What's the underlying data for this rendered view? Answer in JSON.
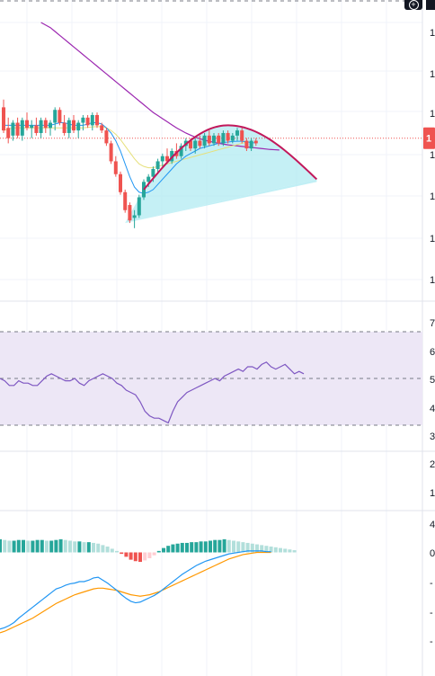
{
  "toolbar": {
    "zoom_icon": "plus-circle-icon"
  },
  "colors": {
    "up": "#26a69a",
    "down": "#ef5350",
    "rsi": "#7e57c2",
    "rsi_band": "#ede7f6",
    "macd": "#2196f3",
    "signal": "#ff9800",
    "ma_long": "#9c27b0",
    "ma_short": "#2196f3",
    "ma_mid": "#e6e07a",
    "arc": "#c2185b",
    "wedge": "#b2ebf2",
    "price_line": "#ef5350"
  },
  "chart_data": {
    "type": "candlestick",
    "price_pane": {
      "axis_labels": [
        "1",
        "1",
        "1",
        "1",
        "1",
        "1",
        "1"
      ],
      "price_tag": {
        "value": "1"
      },
      "candles": [
        {
          "o": 67,
          "h": 70,
          "l": 57,
          "c": 58
        },
        {
          "o": 59,
          "h": 63,
          "l": 53,
          "c": 55
        },
        {
          "o": 56,
          "h": 62,
          "l": 54,
          "c": 61
        },
        {
          "o": 61,
          "h": 63,
          "l": 55,
          "c": 56
        },
        {
          "o": 56,
          "h": 63,
          "l": 54,
          "c": 62
        },
        {
          "o": 62,
          "h": 65,
          "l": 58,
          "c": 59
        },
        {
          "o": 59,
          "h": 62,
          "l": 55,
          "c": 60
        },
        {
          "o": 60,
          "h": 63,
          "l": 56,
          "c": 57
        },
        {
          "o": 57,
          "h": 63,
          "l": 55,
          "c": 62
        },
        {
          "o": 62,
          "h": 63,
          "l": 57,
          "c": 59
        },
        {
          "o": 59,
          "h": 62,
          "l": 56,
          "c": 61
        },
        {
          "o": 61,
          "h": 67,
          "l": 58,
          "c": 66
        },
        {
          "o": 66,
          "h": 67,
          "l": 60,
          "c": 61
        },
        {
          "o": 61,
          "h": 64,
          "l": 56,
          "c": 57
        },
        {
          "o": 57,
          "h": 63,
          "l": 55,
          "c": 62
        },
        {
          "o": 62,
          "h": 64,
          "l": 57,
          "c": 58
        },
        {
          "o": 58,
          "h": 62,
          "l": 55,
          "c": 61
        },
        {
          "o": 61,
          "h": 64,
          "l": 58,
          "c": 63
        },
        {
          "o": 63,
          "h": 64,
          "l": 59,
          "c": 60
        },
        {
          "o": 60,
          "h": 65,
          "l": 58,
          "c": 64
        },
        {
          "o": 64,
          "h": 65,
          "l": 59,
          "c": 60
        },
        {
          "o": 60,
          "h": 61,
          "l": 57,
          "c": 58
        },
        {
          "o": 58,
          "h": 59,
          "l": 52,
          "c": 53
        },
        {
          "o": 53,
          "h": 54,
          "l": 45,
          "c": 46
        },
        {
          "o": 46,
          "h": 48,
          "l": 40,
          "c": 41
        },
        {
          "o": 41,
          "h": 42,
          "l": 33,
          "c": 34
        },
        {
          "o": 34,
          "h": 35,
          "l": 26,
          "c": 27
        },
        {
          "o": 29,
          "h": 30,
          "l": 22,
          "c": 23
        },
        {
          "o": 24,
          "h": 27,
          "l": 20,
          "c": 25
        },
        {
          "o": 25,
          "h": 33,
          "l": 24,
          "c": 32
        },
        {
          "o": 32,
          "h": 39,
          "l": 31,
          "c": 38
        },
        {
          "o": 38,
          "h": 41,
          "l": 36,
          "c": 40
        },
        {
          "o": 40,
          "h": 44,
          "l": 38,
          "c": 43
        },
        {
          "o": 43,
          "h": 47,
          "l": 41,
          "c": 46
        },
        {
          "o": 46,
          "h": 49,
          "l": 44,
          "c": 48
        },
        {
          "o": 48,
          "h": 51,
          "l": 45,
          "c": 46
        },
        {
          "o": 46,
          "h": 51,
          "l": 45,
          "c": 50
        },
        {
          "o": 50,
          "h": 53,
          "l": 47,
          "c": 48
        },
        {
          "o": 48,
          "h": 53,
          "l": 47,
          "c": 52
        },
        {
          "o": 52,
          "h": 55,
          "l": 50,
          "c": 54
        },
        {
          "o": 54,
          "h": 55,
          "l": 50,
          "c": 51
        },
        {
          "o": 51,
          "h": 55,
          "l": 49,
          "c": 54
        },
        {
          "o": 54,
          "h": 56,
          "l": 51,
          "c": 52
        },
        {
          "o": 52,
          "h": 57,
          "l": 51,
          "c": 56
        },
        {
          "o": 56,
          "h": 58,
          "l": 52,
          "c": 53
        },
        {
          "o": 53,
          "h": 57,
          "l": 52,
          "c": 56
        },
        {
          "o": 56,
          "h": 57,
          "l": 52,
          "c": 53
        },
        {
          "o": 53,
          "h": 58,
          "l": 52,
          "c": 57
        },
        {
          "o": 57,
          "h": 58,
          "l": 53,
          "c": 54
        },
        {
          "o": 54,
          "h": 57,
          "l": 53,
          "c": 56
        },
        {
          "o": 56,
          "h": 59,
          "l": 54,
          "c": 58
        },
        {
          "o": 58,
          "h": 59,
          "l": 53,
          "c": 54
        },
        {
          "o": 54,
          "h": 55,
          "l": 50,
          "c": 51
        },
        {
          "o": 51,
          "h": 55,
          "l": 50,
          "c": 54
        },
        {
          "o": 54,
          "h": 55,
          "l": 52,
          "c": 53
        }
      ],
      "ma_long": [
        100,
        99,
        98,
        96.5,
        95,
        93.5,
        92,
        90.5,
        89,
        87.5,
        86,
        84.5,
        83,
        81.5,
        80,
        78.5,
        77,
        75.5,
        74,
        72.5,
        71,
        69.5,
        68,
        66.5,
        65,
        63.8,
        62.6,
        61.4,
        60.2,
        59,
        58,
        57,
        56.2,
        55.4,
        54.8,
        54.2,
        53.8,
        53.4,
        53,
        52.7,
        52.4,
        52.2,
        52,
        51.8,
        51.6,
        51.4,
        51.2,
        51,
        50.8,
        50.6,
        50.5,
        50.4
      ],
      "ma_short": [
        60,
        60,
        60,
        60,
        60,
        60,
        60,
        60,
        60,
        60,
        60,
        60.5,
        61,
        61,
        60.5,
        60,
        60,
        60,
        60.5,
        61,
        61,
        60.5,
        59,
        57,
        54,
        50,
        45,
        40,
        36,
        34,
        33.5,
        34,
        35,
        37,
        39,
        41,
        43,
        45,
        46.5,
        48,
        49,
        50,
        51,
        51.5,
        52,
        52.5,
        53,
        53.3,
        53.5,
        53.7,
        53.8,
        53.8,
        53.6,
        53.3,
        53.1
      ],
      "ma_mid": [
        58,
        58.5,
        59,
        59,
        59,
        59,
        59,
        59,
        59,
        59,
        59,
        59,
        59,
        59,
        59,
        59,
        59,
        59,
        59.2,
        59.4,
        59.5,
        59.5,
        59,
        58,
        56.5,
        54.5,
        52,
        49.5,
        47,
        45,
        44,
        43.5,
        43.5,
        44,
        44.5,
        45,
        45.5,
        46,
        46.5,
        47,
        47.5,
        48,
        48.5,
        49,
        49.5,
        50,
        50.5,
        51,
        51.5,
        52,
        52.5,
        53,
        53.5
      ],
      "price_level": 55,
      "arc": {
        "start_index": 30,
        "peak_index": 48,
        "end_index": 67,
        "start": 35,
        "peak": 60,
        "end": 39
      },
      "wedge": {
        "apex": {
          "index": 26,
          "value": 22
        },
        "upper_end": {
          "index": 67,
          "value": 39
        },
        "lower_end": {
          "index": 67,
          "value": 38
        }
      }
    },
    "rsi_pane": {
      "axis_labels": [
        "7",
        "6",
        "5",
        "4",
        "3"
      ],
      "upper": 70,
      "middle": 50,
      "lower": 30,
      "range": [
        25,
        75
      ],
      "values": [
        50,
        49,
        47,
        47,
        49,
        48,
        48,
        47,
        47,
        49,
        51,
        52,
        51,
        50,
        49,
        49,
        50,
        48,
        47,
        49,
        50,
        51,
        52,
        51,
        50,
        48,
        47,
        45,
        44,
        43,
        40,
        36,
        34,
        33,
        33,
        32,
        31,
        36,
        40,
        42,
        44,
        45,
        46,
        47,
        48,
        49,
        50,
        49,
        51,
        52,
        53,
        54,
        53,
        55,
        55,
        54,
        56,
        57,
        55,
        54,
        55,
        56,
        54,
        52,
        53,
        52
      ],
      "display_start": 0
    },
    "extra_axis_labels": [
      "2",
      "1"
    ],
    "macd_pane": {
      "axis_labels": [
        "4",
        "0",
        "-",
        "-",
        "-"
      ],
      "zero_level": 0,
      "range": [
        -12,
        4
      ],
      "hist": [
        1.8,
        1.7,
        1.6,
        1.6,
        1.7,
        1.7,
        1.6,
        1.6,
        1.7,
        1.7,
        1.6,
        1.6,
        1.7,
        1.8,
        1.7,
        1.6,
        1.5,
        1.5,
        1.4,
        1.4,
        1.3,
        1.2,
        1,
        0.8,
        0.5,
        0.2,
        -0.2,
        -0.6,
        -1,
        -1.2,
        -1.3,
        -1.1,
        -0.8,
        -0.4,
        0.2,
        0.6,
        0.9,
        1.1,
        1.2,
        1.3,
        1.3,
        1.4,
        1.4,
        1.5,
        1.5,
        1.6,
        1.7,
        1.7,
        1.8,
        1.7,
        1.6,
        1.5,
        1.4,
        1.3,
        1.2,
        1.1,
        1,
        0.9,
        0.8,
        0.7,
        0.6,
        0.5,
        0.4,
        0.3
      ],
      "macd": [
        -10.5,
        -10.3,
        -10,
        -9.6,
        -9,
        -8.5,
        -8,
        -7.5,
        -7,
        -6.5,
        -6,
        -5.5,
        -5,
        -4.8,
        -4.5,
        -4.3,
        -4.2,
        -4,
        -4,
        -3.8,
        -3.5,
        -3.4,
        -3.8,
        -4.2,
        -4.7,
        -5.2,
        -5.8,
        -6.3,
        -6.7,
        -6.9,
        -6.8,
        -6.5,
        -6.2,
        -5.9,
        -5.5,
        -5,
        -4.5,
        -4,
        -3.5,
        -3,
        -2.6,
        -2.2,
        -1.8,
        -1.5,
        -1.2,
        -1,
        -0.8,
        -0.6,
        -0.4,
        -0.2,
        -0.1,
        0,
        0.1,
        0.2,
        0.2,
        0.2,
        0.2,
        0.1,
        0.1
      ],
      "signal": [
        -11,
        -10.8,
        -10.5,
        -10.2,
        -9.9,
        -9.6,
        -9.3,
        -9,
        -8.6,
        -8.2,
        -7.8,
        -7.4,
        -7,
        -6.7,
        -6.4,
        -6.1,
        -5.8,
        -5.6,
        -5.4,
        -5.2,
        -5,
        -4.9,
        -4.9,
        -5,
        -5.1,
        -5.2,
        -5.4,
        -5.6,
        -5.8,
        -5.9,
        -6,
        -5.9,
        -5.8,
        -5.6,
        -5.4,
        -5.1,
        -4.8,
        -4.5,
        -4.2,
        -3.9,
        -3.6,
        -3.3,
        -3,
        -2.7,
        -2.4,
        -2.1,
        -1.8,
        -1.5,
        -1.2,
        -0.9,
        -0.7,
        -0.5,
        -0.3,
        -0.2,
        -0.1,
        0,
        0,
        0,
        0
      ]
    }
  }
}
